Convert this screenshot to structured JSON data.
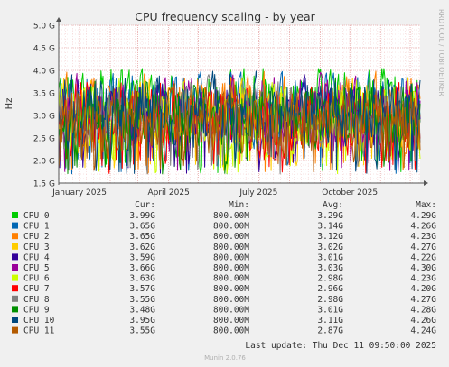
{
  "chart_data": {
    "type": "line",
    "title": "CPU frequency scaling - by year",
    "ylabel": "Hz",
    "side_label": "RRDTOOL / TOBI OETIKER",
    "footer": "Munin 2.0.76",
    "last_update": "Last update:  Thu Dec 11 09:50:00 2025",
    "ylim": [
      1.5,
      5.0
    ],
    "yticks": [
      {
        "v": 1.5,
        "label": "1.5 G"
      },
      {
        "v": 2.0,
        "label": "2.0 G"
      },
      {
        "v": 2.5,
        "label": "2.5 G"
      },
      {
        "v": 3.0,
        "label": "3.0 G"
      },
      {
        "v": 3.5,
        "label": "3.5 G"
      },
      {
        "v": 4.0,
        "label": "4.0 G"
      },
      {
        "v": 4.5,
        "label": "4.5 G"
      },
      {
        "v": 5.0,
        "label": "5.0 G"
      }
    ],
    "xrange": [
      "2024-12-11",
      "2025-12-11"
    ],
    "xticks": [
      {
        "date": "2025-01-01",
        "label": "January 2025"
      },
      {
        "date": "2025-04-01",
        "label": "April 2025"
      },
      {
        "date": "2025-07-01",
        "label": "July 2025"
      },
      {
        "date": "2025-10-01",
        "label": "October 2025"
      }
    ],
    "grid": true,
    "legend_headers": {
      "cur": "Cur:",
      "min": "Min:",
      "avg": "Avg:",
      "max": "Max:"
    },
    "series": [
      {
        "name": "CPU 0",
        "color": "#00cc00",
        "cur": "3.99G",
        "min": "800.00M",
        "avg": "3.29G",
        "max": "4.29G",
        "avg_v": 3.29,
        "max_v": 4.29
      },
      {
        "name": "CPU 1",
        "color": "#0066b3",
        "cur": "3.65G",
        "min": "800.00M",
        "avg": "3.14G",
        "max": "4.26G",
        "avg_v": 3.14,
        "max_v": 4.26
      },
      {
        "name": "CPU 2",
        "color": "#ff8000",
        "cur": "3.65G",
        "min": "800.00M",
        "avg": "3.12G",
        "max": "4.23G",
        "avg_v": 3.12,
        "max_v": 4.23
      },
      {
        "name": "CPU 3",
        "color": "#ffcc00",
        "cur": "3.62G",
        "min": "800.00M",
        "avg": "3.02G",
        "max": "4.27G",
        "avg_v": 3.02,
        "max_v": 4.27
      },
      {
        "name": "CPU 4",
        "color": "#330099",
        "cur": "3.59G",
        "min": "800.00M",
        "avg": "3.01G",
        "max": "4.22G",
        "avg_v": 3.01,
        "max_v": 4.22
      },
      {
        "name": "CPU 5",
        "color": "#990099",
        "cur": "3.66G",
        "min": "800.00M",
        "avg": "3.03G",
        "max": "4.30G",
        "avg_v": 3.03,
        "max_v": 4.3
      },
      {
        "name": "CPU 6",
        "color": "#ccff00",
        "cur": "3.63G",
        "min": "800.00M",
        "avg": "2.98G",
        "max": "4.23G",
        "avg_v": 2.98,
        "max_v": 4.23
      },
      {
        "name": "CPU 7",
        "color": "#ff0000",
        "cur": "3.57G",
        "min": "800.00M",
        "avg": "2.96G",
        "max": "4.20G",
        "avg_v": 2.96,
        "max_v": 4.2
      },
      {
        "name": "CPU 8",
        "color": "#808080",
        "cur": "3.55G",
        "min": "800.00M",
        "avg": "2.98G",
        "max": "4.27G",
        "avg_v": 2.98,
        "max_v": 4.27
      },
      {
        "name": "CPU 9",
        "color": "#008f00",
        "cur": "3.48G",
        "min": "800.00M",
        "avg": "3.01G",
        "max": "4.28G",
        "avg_v": 3.01,
        "max_v": 4.28
      },
      {
        "name": "CPU 10",
        "color": "#00487d",
        "cur": "3.95G",
        "min": "800.00M",
        "avg": "3.11G",
        "max": "4.26G",
        "avg_v": 3.11,
        "max_v": 4.26
      },
      {
        "name": "CPU 11",
        "color": "#b35a00",
        "cur": "3.55G",
        "min": "800.00M",
        "avg": "2.87G",
        "max": "4.24G",
        "avg_v": 2.87,
        "max_v": 4.24
      }
    ]
  }
}
